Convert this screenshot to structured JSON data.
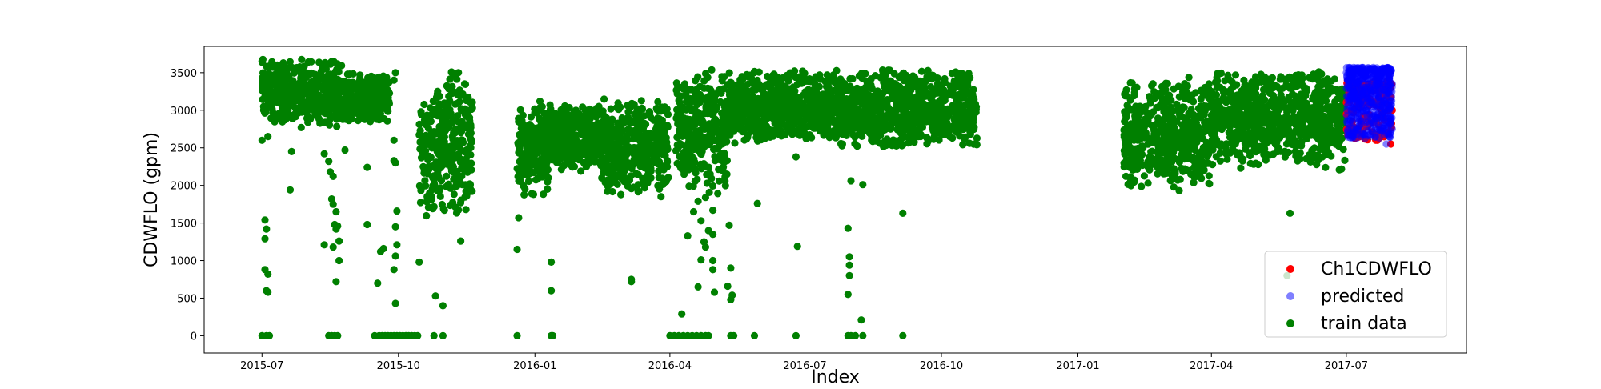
{
  "chart_data": {
    "type": "scatter",
    "title": "",
    "xlabel": "Index",
    "ylabel": "CDWFLO (gpm)",
    "x_range": [
      "2015-05-23",
      "2017-09-20"
    ],
    "ylim": [
      -230,
      3850
    ],
    "y_ticks": [
      0,
      500,
      1000,
      1500,
      2000,
      2500,
      3000,
      3500
    ],
    "x_ticks": [
      {
        "label": "2015-07",
        "date": "2015-07-01"
      },
      {
        "label": "2015-10",
        "date": "2015-10-01"
      },
      {
        "label": "2016-01",
        "date": "2016-01-01"
      },
      {
        "label": "2016-04",
        "date": "2016-04-01"
      },
      {
        "label": "2016-07",
        "date": "2016-07-01"
      },
      {
        "label": "2016-10",
        "date": "2016-10-01"
      },
      {
        "label": "2017-01",
        "date": "2017-01-01"
      },
      {
        "label": "2017-04",
        "date": "2017-04-01"
      },
      {
        "label": "2017-07",
        "date": "2017-07-01"
      }
    ],
    "grid": false,
    "legend_position": "lower-right",
    "series": [
      {
        "name": "Ch1CDWFLO",
        "color": "#ff0000",
        "marker": "circle",
        "points": [
          [
            "2017-07-01",
            2950
          ],
          [
            "2017-07-03",
            3100
          ],
          [
            "2017-07-05",
            2850
          ],
          [
            "2017-07-07",
            3200
          ],
          [
            "2017-07-09",
            2750
          ],
          [
            "2017-07-11",
            3050
          ],
          [
            "2017-07-13",
            3300
          ],
          [
            "2017-07-15",
            2900
          ],
          [
            "2017-07-17",
            3150
          ],
          [
            "2017-07-19",
            3250
          ],
          [
            "2017-07-21",
            2650
          ],
          [
            "2017-07-23",
            2800
          ],
          [
            "2017-07-25",
            2950
          ],
          [
            "2017-07-27",
            3350
          ],
          [
            "2017-07-29",
            2700
          ],
          [
            "2017-07-31",
            2550
          ],
          [
            "2017-08-01",
            3000
          ],
          [
            "2017-07-22",
            2600
          ]
        ]
      },
      {
        "name": "predicted",
        "color": "#0000ff",
        "marker": "circle",
        "points": [
          [
            "2017-07-01",
            3500
          ],
          [
            "2017-07-02",
            3400
          ],
          [
            "2017-07-03",
            3300
          ],
          [
            "2017-07-04",
            3450
          ],
          [
            "2017-07-05",
            3550
          ],
          [
            "2017-07-06",
            3250
          ],
          [
            "2017-07-07",
            3150
          ],
          [
            "2017-07-08",
            3500
          ],
          [
            "2017-07-09",
            3050
          ],
          [
            "2017-07-10",
            3400
          ],
          [
            "2017-07-11",
            3550
          ],
          [
            "2017-07-12",
            3200
          ],
          [
            "2017-07-13",
            3450
          ],
          [
            "2017-07-14",
            3500
          ],
          [
            "2017-07-15",
            3000
          ],
          [
            "2017-07-16",
            3350
          ],
          [
            "2017-07-17",
            3550
          ],
          [
            "2017-07-18",
            3100
          ],
          [
            "2017-07-19",
            3450
          ],
          [
            "2017-07-20",
            3300
          ],
          [
            "2017-07-21",
            2900
          ],
          [
            "2017-07-22",
            3500
          ],
          [
            "2017-07-23",
            3150
          ],
          [
            "2017-07-24",
            3400
          ],
          [
            "2017-07-25",
            3550
          ],
          [
            "2017-07-26",
            3000
          ],
          [
            "2017-07-27",
            3450
          ],
          [
            "2017-07-28",
            3250
          ],
          [
            "2017-07-29",
            2850
          ],
          [
            "2017-07-30",
            3500
          ],
          [
            "2017-07-31",
            2700
          ],
          [
            "2017-08-01",
            3350
          ],
          [
            "2017-07-28",
            2550
          ],
          [
            "2017-07-30",
            2650
          ],
          [
            "2017-07-15",
            3550
          ],
          [
            "2017-07-20",
            3550
          ],
          [
            "2017-07-10",
            2950
          ],
          [
            "2017-07-26",
            3550
          ],
          [
            "2017-07-18",
            2850
          ],
          [
            "2017-08-01",
            2750
          ]
        ]
      },
      {
        "name": "train data",
        "color": "#008000",
        "marker": "circle",
        "segments": [
          {
            "start": "2015-07-01",
            "end": "2015-08-25",
            "low": 2750,
            "high": 3700
          },
          {
            "start": "2015-08-26",
            "end": "2015-09-25",
            "low": 2800,
            "high": 3500
          },
          {
            "start": "2015-10-15",
            "end": "2015-11-20",
            "low": 1550,
            "high": 3580
          },
          {
            "start": "2015-12-20",
            "end": "2016-01-10",
            "low": 1800,
            "high": 3150
          },
          {
            "start": "2016-01-10",
            "end": "2016-02-15",
            "low": 2150,
            "high": 3100
          },
          {
            "start": "2016-02-15",
            "end": "2016-03-31",
            "low": 1850,
            "high": 3200
          },
          {
            "start": "2016-04-05",
            "end": "2016-05-10",
            "low": 1850,
            "high": 3550
          },
          {
            "start": "2016-05-10",
            "end": "2016-07-25",
            "low": 2550,
            "high": 3550
          },
          {
            "start": "2016-07-25",
            "end": "2016-10-25",
            "low": 2450,
            "high": 3550
          },
          {
            "start": "2017-02-01",
            "end": "2017-03-31",
            "low": 1900,
            "high": 3450
          },
          {
            "start": "2017-03-31",
            "end": "2017-06-30",
            "low": 2200,
            "high": 3550
          }
        ],
        "points": [
          [
            "2015-07-01",
            0
          ],
          [
            "2015-07-04",
            0
          ],
          [
            "2015-07-06",
            0
          ],
          [
            "2015-07-01",
            2600
          ],
          [
            "2015-07-05",
            2650
          ],
          [
            "2015-07-03",
            1540
          ],
          [
            "2015-07-04",
            1420
          ],
          [
            "2015-07-03",
            1290
          ],
          [
            "2015-07-03",
            880
          ],
          [
            "2015-07-05",
            820
          ],
          [
            "2015-07-04",
            600
          ],
          [
            "2015-07-05",
            580
          ],
          [
            "2015-07-20",
            1940
          ],
          [
            "2015-07-21",
            2450
          ],
          [
            "2015-08-12",
            2420
          ],
          [
            "2015-08-15",
            2320
          ],
          [
            "2015-08-16",
            2180
          ],
          [
            "2015-08-18",
            2120
          ],
          [
            "2015-08-17",
            1820
          ],
          [
            "2015-08-18",
            1750
          ],
          [
            "2015-08-20",
            1650
          ],
          [
            "2015-08-19",
            1480
          ],
          [
            "2015-08-20",
            1420
          ],
          [
            "2015-08-21",
            1460
          ],
          [
            "2015-08-12",
            1210
          ],
          [
            "2015-08-18",
            1180
          ],
          [
            "2015-08-22",
            1260
          ],
          [
            "2015-08-22",
            1000
          ],
          [
            "2015-08-20",
            720
          ],
          [
            "2015-08-26",
            2470
          ],
          [
            "2015-08-15",
            0
          ],
          [
            "2015-08-17",
            0
          ],
          [
            "2015-08-19",
            0
          ],
          [
            "2015-08-21",
            0
          ],
          [
            "2015-09-10",
            1480
          ],
          [
            "2015-09-10",
            2240
          ],
          [
            "2015-09-19",
            1120
          ],
          [
            "2015-09-21",
            1160
          ],
          [
            "2015-09-17",
            700
          ],
          [
            "2015-09-28",
            2330
          ],
          [
            "2015-09-28",
            3400
          ],
          [
            "2015-09-15",
            0
          ],
          [
            "2015-09-18",
            0
          ],
          [
            "2015-09-20",
            0
          ],
          [
            "2015-09-22",
            0
          ],
          [
            "2015-09-24",
            0
          ],
          [
            "2015-09-26",
            0
          ],
          [
            "2015-09-28",
            0
          ],
          [
            "2015-09-30",
            0
          ],
          [
            "2015-10-02",
            0
          ],
          [
            "2015-10-04",
            0
          ],
          [
            "2015-10-06",
            0
          ],
          [
            "2015-10-08",
            0
          ],
          [
            "2015-10-10",
            0
          ],
          [
            "2015-10-12",
            0
          ],
          [
            "2015-10-14",
            0
          ],
          [
            "2015-09-28",
            2600
          ],
          [
            "2015-09-29",
            2300
          ],
          [
            "2015-09-30",
            1660
          ],
          [
            "2015-09-29",
            1450
          ],
          [
            "2015-09-30",
            1210
          ],
          [
            "2015-09-29",
            1060
          ],
          [
            "2015-09-28",
            880
          ],
          [
            "2015-09-29",
            430
          ],
          [
            "2015-09-29",
            3500
          ],
          [
            "2015-10-15",
            980
          ],
          [
            "2015-10-26",
            530
          ],
          [
            "2015-10-31",
            400
          ],
          [
            "2015-10-25",
            0
          ],
          [
            "2015-10-31",
            0
          ],
          [
            "2015-11-01",
            1670
          ],
          [
            "2015-11-12",
            1260
          ],
          [
            "2015-12-20",
            0
          ],
          [
            "2015-12-20",
            1150
          ],
          [
            "2015-12-21",
            1570
          ],
          [
            "2016-01-12",
            0
          ],
          [
            "2016-01-13",
            0
          ],
          [
            "2016-01-12",
            980
          ],
          [
            "2016-01-12",
            600
          ],
          [
            "2016-01-10",
            2100
          ],
          [
            "2016-01-08",
            2280
          ],
          [
            "2016-03-06",
            720
          ],
          [
            "2016-03-06",
            750
          ],
          [
            "2016-03-26",
            1850
          ],
          [
            "2016-03-25",
            2580
          ],
          [
            "2016-03-28",
            2800
          ],
          [
            "2016-04-01",
            0
          ],
          [
            "2016-04-04",
            0
          ],
          [
            "2016-04-07",
            0
          ],
          [
            "2016-04-10",
            0
          ],
          [
            "2016-04-13",
            0
          ],
          [
            "2016-04-16",
            0
          ],
          [
            "2016-04-19",
            0
          ],
          [
            "2016-04-22",
            0
          ],
          [
            "2016-04-25",
            0
          ],
          [
            "2016-04-27",
            0
          ],
          [
            "2016-04-09",
            290
          ],
          [
            "2016-04-13",
            1330
          ],
          [
            "2016-04-17",
            1650
          ],
          [
            "2016-04-20",
            1790
          ],
          [
            "2016-04-22",
            1530
          ],
          [
            "2016-04-24",
            1250
          ],
          [
            "2016-04-22",
            1010
          ],
          [
            "2016-04-20",
            650
          ],
          [
            "2016-04-25",
            1180
          ],
          [
            "2016-04-27",
            1400
          ],
          [
            "2016-04-30",
            1670
          ],
          [
            "2016-04-30",
            1350
          ],
          [
            "2016-04-30",
            1000
          ],
          [
            "2016-04-30",
            880
          ],
          [
            "2016-05-01",
            580
          ],
          [
            "2016-04-28",
            2130
          ],
          [
            "2016-04-25",
            1840
          ],
          [
            "2016-05-10",
            660
          ],
          [
            "2016-05-12",
            480
          ],
          [
            "2016-05-13",
            540
          ],
          [
            "2016-05-12",
            900
          ],
          [
            "2016-05-11",
            1470
          ],
          [
            "2016-05-12",
            0
          ],
          [
            "2016-05-14",
            0
          ],
          [
            "2016-05-28",
            0
          ],
          [
            "2016-05-30",
            1760
          ],
          [
            "2016-06-25",
            0
          ],
          [
            "2016-06-26",
            1190
          ],
          [
            "2016-06-25",
            2380
          ],
          [
            "2016-07-30",
            0
          ],
          [
            "2016-08-01",
            0
          ],
          [
            "2016-08-04",
            0
          ],
          [
            "2016-08-09",
            0
          ],
          [
            "2016-07-30",
            550
          ],
          [
            "2016-07-31",
            800
          ],
          [
            "2016-07-31",
            940
          ],
          [
            "2016-07-31",
            1050
          ],
          [
            "2016-07-30",
            1430
          ],
          [
            "2016-08-01",
            2060
          ],
          [
            "2016-08-09",
            2010
          ],
          [
            "2016-08-08",
            210
          ],
          [
            "2016-09-05",
            0
          ],
          [
            "2016-09-05",
            1630
          ],
          [
            "2016-09-05",
            2540
          ],
          [
            "2017-05-24",
            1630
          ],
          [
            "2017-05-22",
            800
          ]
        ]
      }
    ]
  },
  "legend": {
    "items": [
      {
        "label": "Ch1CDWFLO",
        "color": "#ff0000",
        "opacity": 1
      },
      {
        "label": "predicted",
        "color": "#0000ff",
        "opacity": 0.5
      },
      {
        "label": "train data",
        "color": "#008000",
        "opacity": 1
      }
    ]
  }
}
